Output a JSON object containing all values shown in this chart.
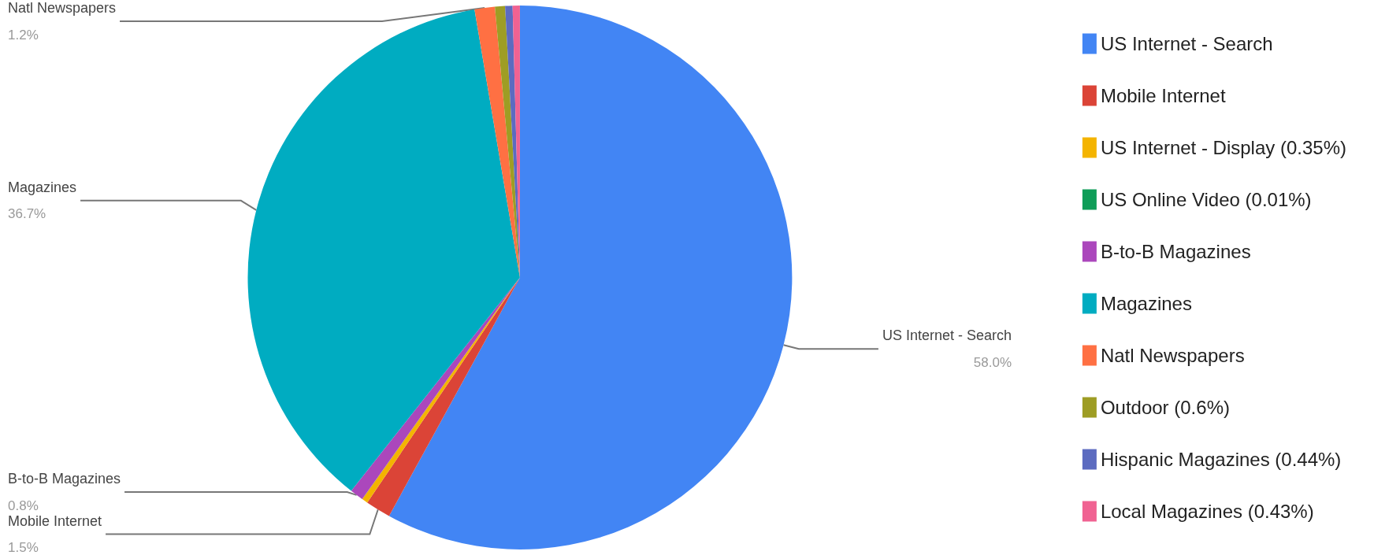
{
  "chart_data": {
    "type": "pie",
    "categories": [
      "US Internet - Search",
      "Mobile Internet",
      "US Internet - Display (0.35%)",
      "US Online Video (0.01%)",
      "B-to-B Magazines",
      "Magazines",
      "Natl Newspapers",
      "Outdoor (0.6%)",
      "Hispanic Magazines (0.44%)",
      "Local Magazines (0.43%)"
    ],
    "values": [
      58.0,
      1.5,
      0.35,
      0.01,
      0.8,
      36.7,
      1.2,
      0.6,
      0.44,
      0.43
    ],
    "colors": [
      "#4285f4",
      "#db4437",
      "#f4b400",
      "#0f9d58",
      "#ab47bc",
      "#00acc1",
      "#ff7043",
      "#9e9d24",
      "#5c6bc0",
      "#f06292"
    ],
    "value_labels": [
      "58.0%",
      "1.5%",
      null,
      null,
      "0.8%",
      "36.7%",
      "1.2%",
      null,
      null,
      null
    ],
    "legend": "right"
  }
}
